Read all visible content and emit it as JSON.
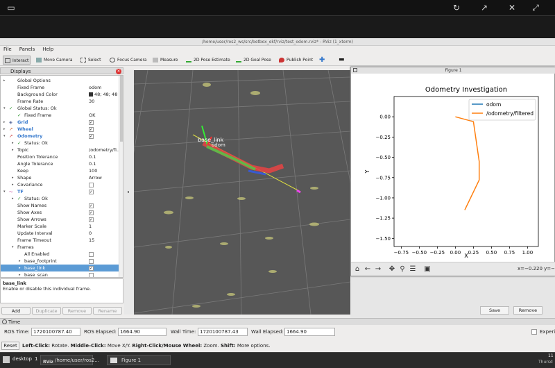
{
  "rviz": {
    "window_title": "/home/user/ros2_ws/src/betbox_ekf/rviz/test_odom.rviz* - RViz (1_xterm)",
    "menu": [
      "File",
      "Panels",
      "Help"
    ],
    "tools": [
      "Interact",
      "Move Camera",
      "Select",
      "Focus Camera",
      "Measure",
      "2D Pose Estimate",
      "2D Goal Pose",
      "Publish Point"
    ],
    "displays_title": "Displays",
    "rows": [
      {
        "label": "Global Options",
        "value": ""
      },
      {
        "label": "Fixed Frame",
        "value": "odom"
      },
      {
        "label": "Background Color",
        "value": "48; 48; 48"
      },
      {
        "label": "Frame Rate",
        "value": "30"
      },
      {
        "label": "Global Status: Ok",
        "value": ""
      },
      {
        "label": "Fixed Frame",
        "value": "OK"
      },
      {
        "label": "Grid",
        "value": ""
      },
      {
        "label": "Wheel",
        "value": ""
      },
      {
        "label": "Odometry",
        "value": ""
      },
      {
        "label": "Status: Ok",
        "value": ""
      },
      {
        "label": "Topic",
        "value": "/odometry/fi..."
      },
      {
        "label": "Position Tolerance",
        "value": "0.1"
      },
      {
        "label": "Angle Tolerance",
        "value": "0.1"
      },
      {
        "label": "Keep",
        "value": "100"
      },
      {
        "label": "Shape",
        "value": "Arrow"
      },
      {
        "label": "Covariance",
        "value": ""
      },
      {
        "label": "TF",
        "value": ""
      },
      {
        "label": "Status: Ok",
        "value": ""
      },
      {
        "label": "Show Names",
        "value": ""
      },
      {
        "label": "Show Axes",
        "value": ""
      },
      {
        "label": "Show Arrows",
        "value": ""
      },
      {
        "label": "Marker Scale",
        "value": "1"
      },
      {
        "label": "Update Interval",
        "value": "0"
      },
      {
        "label": "Frame Timeout",
        "value": "15"
      },
      {
        "label": "Frames",
        "value": ""
      },
      {
        "label": "All Enabled",
        "value": ""
      },
      {
        "label": "base_footprint",
        "value": ""
      },
      {
        "label": "base_link",
        "value": ""
      },
      {
        "label": "base_scan",
        "value": ""
      }
    ],
    "desc_title": "base_link",
    "desc_text": "Enable or disable this individual frame.",
    "display_buttons": [
      "Add",
      "Duplicate",
      "Remove",
      "Rename"
    ],
    "right_buttons": [
      "Save",
      "Remove"
    ],
    "time_label": "Time",
    "ros_time_label": "ROS Time:",
    "ros_time": "1720100787.40",
    "ros_elapsed_label": "ROS Elapsed:",
    "ros_elapsed": "1664.90",
    "wall_time_label": "Wall Time:",
    "wall_time": "1720100787.43",
    "wall_elapsed_label": "Wall Elapsed:",
    "wall_elapsed": "1664.90",
    "experimental": "Experi",
    "reset": "Reset",
    "hint_1": "Left-Click:",
    "hint_2": " Rotate. ",
    "hint_3": "Middle-Click:",
    "hint_4": " Move X/Y. ",
    "hint_5": "Right-Click/Mouse Wheel:",
    "hint_6": " Zoom. ",
    "hint_7": "Shift:",
    "hint_8": " More options.",
    "tf_label_1": "base_link",
    "tf_label_2": "odom"
  },
  "figure": {
    "window_title": "Figure 1",
    "coords": "x=−0.220 y=−"
  },
  "chart_data": {
    "type": "line",
    "title": "Odometry Investigation",
    "xlabel": "X",
    "ylabel": "Y",
    "xlim": [
      -0.85,
      1.15
    ],
    "ylim": [
      -1.6,
      0.25
    ],
    "xticks": [
      "−0.75",
      "−0.50",
      "−0.25",
      "0.00",
      "0.25",
      "0.50",
      "0.75",
      "1.00"
    ],
    "xtick_values": [
      -0.75,
      -0.5,
      -0.25,
      0,
      0.25,
      0.5,
      0.75,
      1.0
    ],
    "yticks": [
      "0.00",
      "−0.25",
      "−0.50",
      "−0.75",
      "−1.00",
      "−1.25",
      "−1.50"
    ],
    "ytick_values": [
      0,
      -0.25,
      -0.5,
      -0.75,
      -1.0,
      -1.25,
      -1.5
    ],
    "legend": "top-right",
    "series": [
      {
        "name": "odom",
        "color": "#1f77b4",
        "x": [],
        "y": []
      },
      {
        "name": "/odometry/filtered",
        "color": "#ff7f0e",
        "x": [
          0.0,
          0.25,
          0.33,
          0.33,
          0.13
        ],
        "y": [
          0.0,
          -0.06,
          -0.55,
          -0.78,
          -1.15
        ]
      }
    ]
  },
  "taskbar": {
    "desktop": "desktop",
    "desktop_num": "1",
    "task1": "/home/user/ros2...",
    "task2": "Figure 1",
    "clock": "11",
    "day": "Thursd"
  }
}
